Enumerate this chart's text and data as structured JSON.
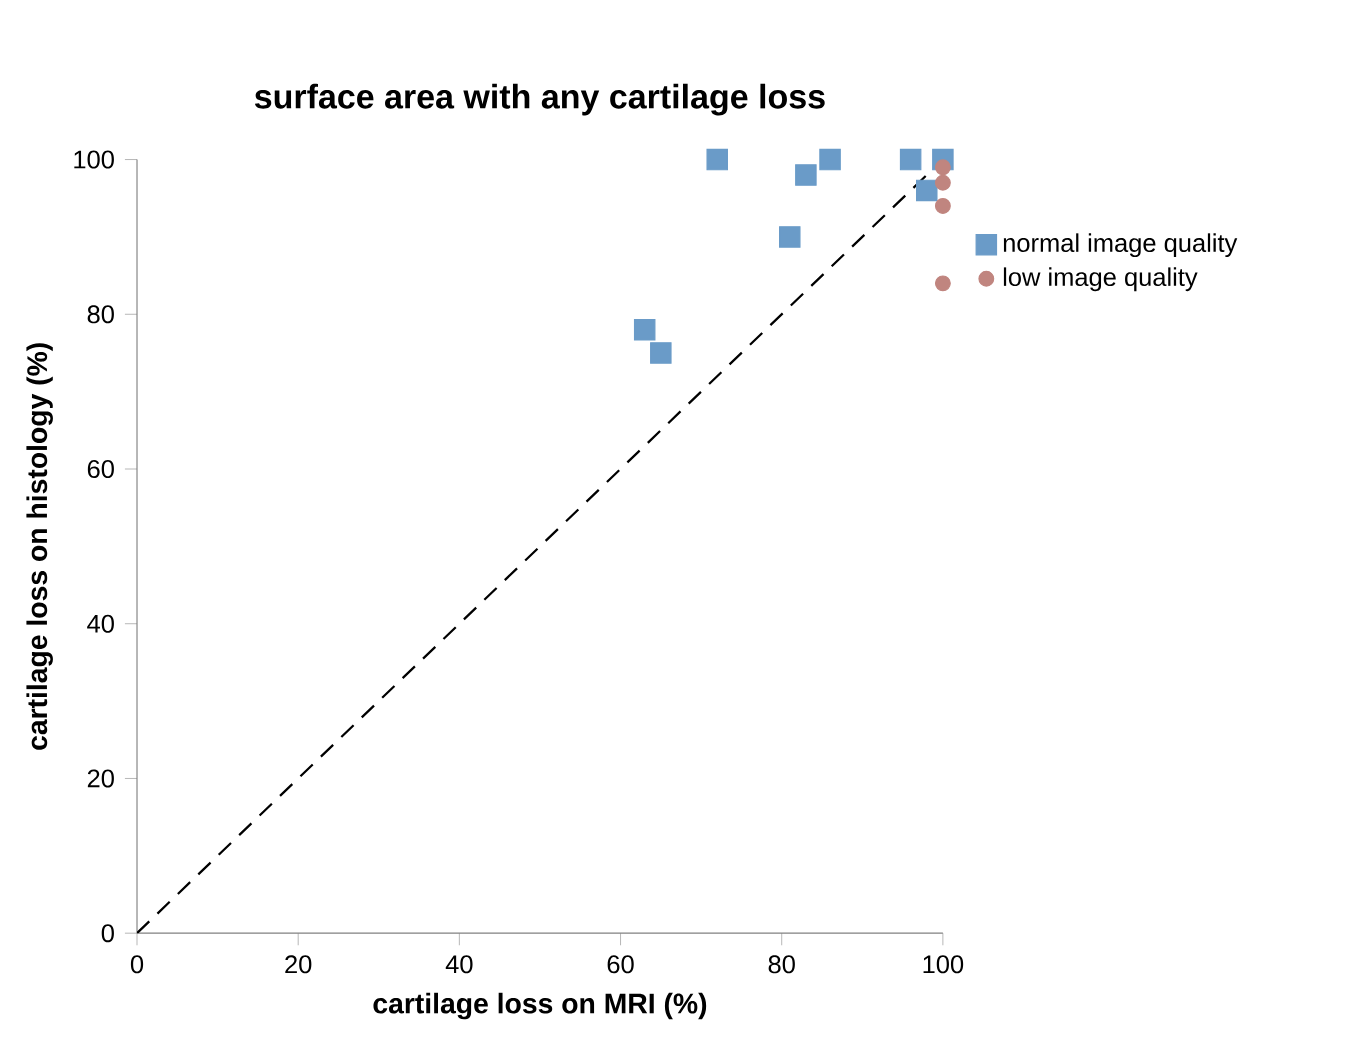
{
  "chart_data": {
    "type": "scatter",
    "title": "surface area with any cartilage loss",
    "xlabel": "cartilage loss on MRI (%)",
    "ylabel": "cartilage loss on histology (%)",
    "xlim": [
      0,
      100
    ],
    "ylim": [
      0,
      100
    ],
    "xticks": [
      0,
      20,
      40,
      60,
      80,
      100
    ],
    "yticks": [
      0,
      20,
      40,
      60,
      80,
      100
    ],
    "grid": false,
    "legend": "right",
    "series": [
      {
        "name": "normal image quality",
        "color": "#6a9bc8",
        "marker": "square",
        "x": [
          72,
          83,
          86,
          96,
          100,
          98,
          81,
          63,
          65
        ],
        "values": [
          100,
          98,
          100,
          100,
          100,
          96,
          90,
          78,
          75
        ]
      },
      {
        "name": "low image quality",
        "color": "#c0857f",
        "marker": "circle",
        "x": [
          100,
          100,
          100,
          100
        ],
        "values": [
          99,
          97,
          94,
          84
        ]
      },
      {
        "type": "line",
        "color": "#000000",
        "line_style": "dashed",
        "marker": "none",
        "x": [
          0,
          100
        ],
        "values": [
          0,
          100
        ]
      }
    ]
  }
}
